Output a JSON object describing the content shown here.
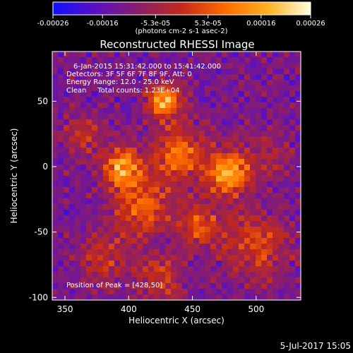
{
  "colorbar": {
    "ticks": [
      {
        "value": -0.00026,
        "label": "-0.00026"
      },
      {
        "value": -0.00016,
        "label": "-0.00016"
      },
      {
        "value": -5.3e-05,
        "label": "-5.3e-05"
      },
      {
        "value": 5.3e-05,
        "label": "5.3e-05"
      },
      {
        "value": 0.00016,
        "label": "0.00016"
      },
      {
        "value": 0.00026,
        "label": "0.00026"
      }
    ],
    "range": [
      -0.00026,
      0.00026
    ],
    "units_label": "(photons cm-2 s-1 asec-2)",
    "colors": [
      "#1010ff",
      "#5a10c0",
      "#8a1e6a",
      "#c22a1a",
      "#ff6a00",
      "#ffb020",
      "#ffffe0"
    ]
  },
  "chart_data": {
    "type": "heatmap",
    "title": "Reconstructed RHESSI Image",
    "xlabel": "Heliocentric X (arcsec)",
    "ylabel": "Heliocentric Y (arcsec)",
    "xlim": [
      340,
      535
    ],
    "ylim": [
      -102,
      88
    ],
    "xticks": [
      350,
      400,
      450,
      500
    ],
    "yticks": [
      -100,
      -50,
      0,
      50
    ],
    "info_lines": [
      "6-Jan-2015 15:31:42.000 to 15:41:42.000",
      "Detectors: 3F 5F 6F 7F 8F 9F, Att: 0",
      "Energy Range: 12.0 - 25.0 keV",
      "Clean     Total counts: 1.23E+04"
    ],
    "peak_label": "Position of Peak = [428,50]",
    "peak_position": [
      428,
      50
    ],
    "sources": [
      {
        "x": 428,
        "y": 50,
        "flux": 0.00026,
        "sigma": 9
      },
      {
        "x": 478,
        "y": -5,
        "flux": 0.00025,
        "sigma": 12
      },
      {
        "x": 395,
        "y": 0,
        "flux": 0.00022,
        "sigma": 11
      },
      {
        "x": 440,
        "y": 10,
        "flux": 0.00018,
        "sigma": 14
      },
      {
        "x": 410,
        "y": -30,
        "flux": 0.00016,
        "sigma": 16
      },
      {
        "x": 455,
        "y": -45,
        "flux": 0.00014,
        "sigma": 12
      },
      {
        "x": 500,
        "y": -60,
        "flux": 0.00013,
        "sigma": 18
      },
      {
        "x": 380,
        "y": -70,
        "flux": 0.0001,
        "sigma": 14
      },
      {
        "x": 425,
        "y": -85,
        "flux": 0.00011,
        "sigma": 13
      },
      {
        "x": 365,
        "y": 25,
        "flux": 9e-05,
        "sigma": 12
      },
      {
        "x": 510,
        "y": 10,
        "flux": 8e-05,
        "sigma": 12
      }
    ]
  },
  "footer_date": "5-Jul-2017 15:05"
}
